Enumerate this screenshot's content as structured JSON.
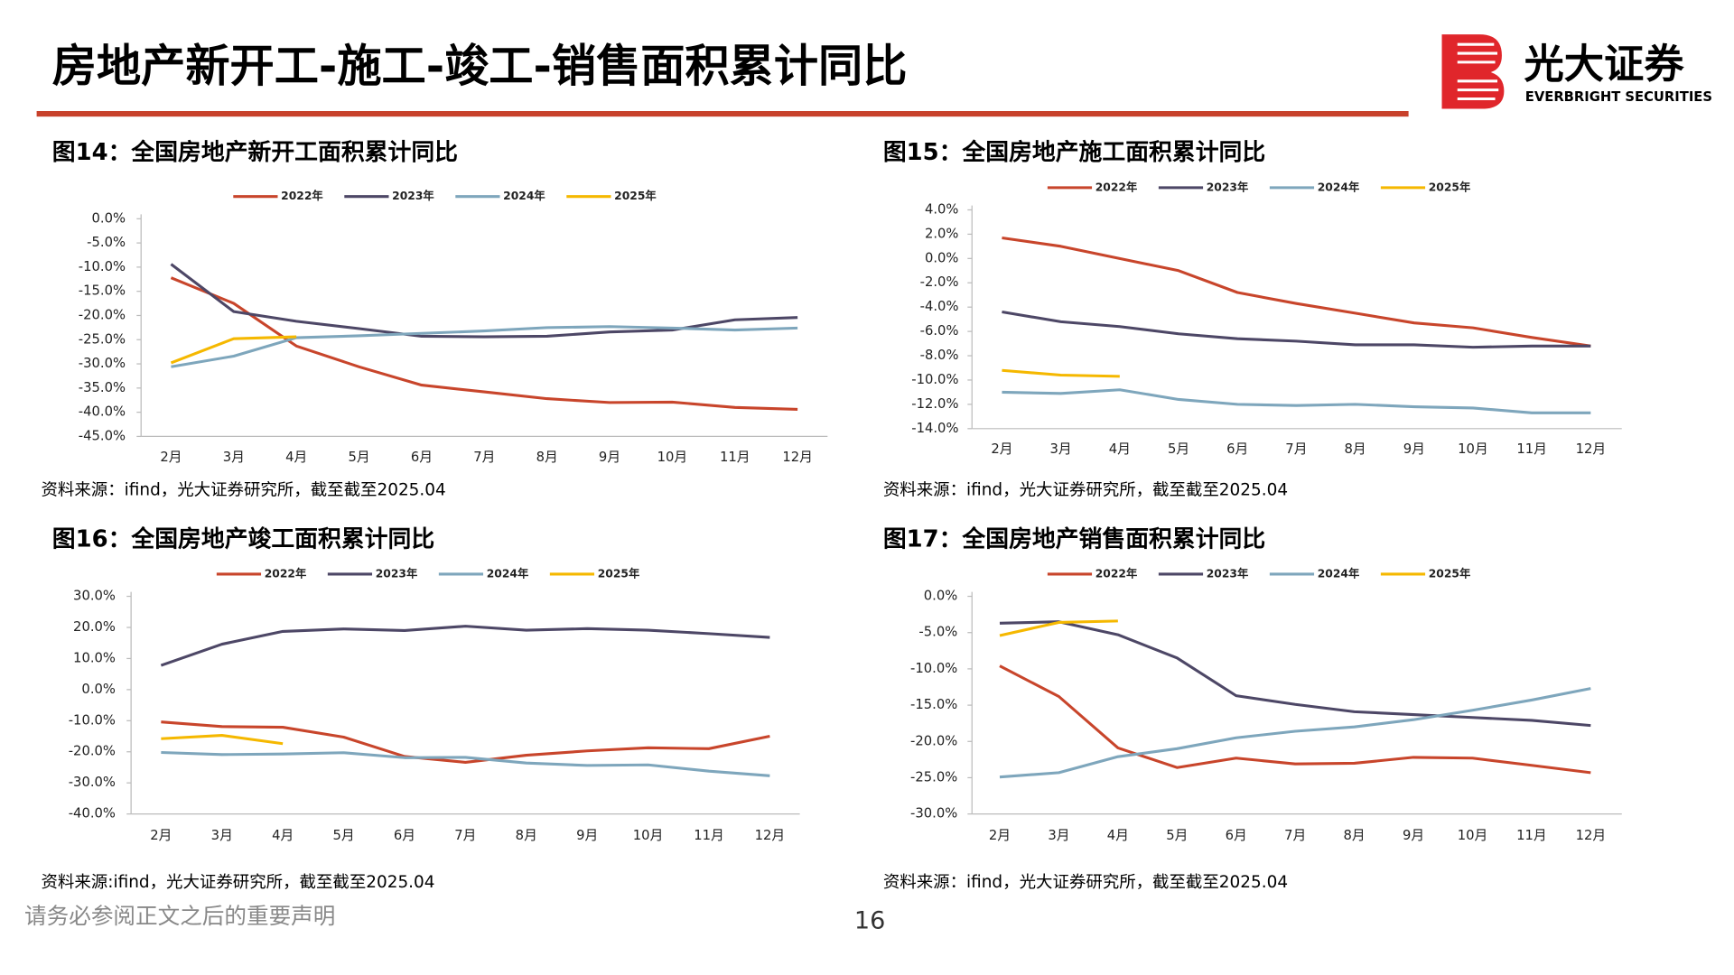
{
  "header": {
    "title": "房地产新开工-施工-竣工-销售面积累计同比",
    "logo_cn": "光大证券",
    "logo_en": "EVERBRIGHT SECURITIES"
  },
  "chart_data": [
    {
      "type": "line",
      "title": "图14：全国房地产新开工面积累计同比",
      "source": "资料来源：ifind，光大证券研究所，截至截至2025.04",
      "categories": [
        "2月",
        "3月",
        "4月",
        "5月",
        "6月",
        "7月",
        "8月",
        "9月",
        "10月",
        "11月",
        "12月"
      ],
      "series": [
        {
          "name": "2022年",
          "color": "#c8452b",
          "values": [
            -12.2,
            -17.5,
            -26.3,
            -30.6,
            -34.4,
            -35.8,
            -37.2,
            -38.0,
            -37.9,
            -39.0,
            -39.4
          ]
        },
        {
          "name": "2023年",
          "color": "#4d4766",
          "values": [
            -9.4,
            -19.2,
            -21.2,
            -22.7,
            -24.3,
            -24.4,
            -24.3,
            -23.4,
            -23.0,
            -20.9,
            -20.4
          ]
        },
        {
          "name": "2024年",
          "color": "#7ea6bc",
          "values": [
            -30.6,
            -28.4,
            -24.6,
            -24.2,
            -23.7,
            -23.2,
            -22.5,
            -22.3,
            -22.6,
            -23.0,
            -22.6
          ]
        },
        {
          "name": "2025年",
          "color": "#f5b800",
          "values": [
            -29.8,
            -24.8,
            -24.4,
            null,
            null,
            null,
            null,
            null,
            null,
            null,
            null
          ]
        }
      ],
      "ylim": [
        -45,
        0
      ],
      "yticks": [
        {
          "value": 0,
          "label": "0.0%"
        },
        {
          "value": -5,
          "label": "-5.0%"
        },
        {
          "value": -10,
          "label": "-10.0%"
        },
        {
          "value": -15,
          "label": "-15.0%"
        },
        {
          "value": -20,
          "label": "-20.0%"
        },
        {
          "value": -25,
          "label": "-25.0%"
        },
        {
          "value": -30,
          "label": "-30.0%"
        },
        {
          "value": -35,
          "label": "-35.0%"
        },
        {
          "value": -40,
          "label": "-40.0%"
        },
        {
          "value": -45,
          "label": "-45.0%"
        }
      ]
    },
    {
      "type": "line",
      "title": "图15：全国房地产施工面积累计同比",
      "source": "资料来源：ifind，光大证券研究所，截至截至2025.04",
      "categories": [
        "2月",
        "3月",
        "4月",
        "5月",
        "6月",
        "7月",
        "8月",
        "9月",
        "10月",
        "11月",
        "12月"
      ],
      "series": [
        {
          "name": "2022年",
          "color": "#c8452b",
          "values": [
            1.7,
            1.0,
            0.0,
            -1.0,
            -2.8,
            -3.7,
            -4.5,
            -5.3,
            -5.7,
            -6.5,
            -7.2
          ]
        },
        {
          "name": "2023年",
          "color": "#4d4766",
          "values": [
            -4.4,
            -5.2,
            -5.6,
            -6.2,
            -6.6,
            -6.8,
            -7.1,
            -7.1,
            -7.3,
            -7.2,
            -7.2
          ]
        },
        {
          "name": "2024年",
          "color": "#7ea6bc",
          "values": [
            -11.0,
            -11.1,
            -10.8,
            -11.6,
            -12.0,
            -12.1,
            -12.0,
            -12.2,
            -12.3,
            -12.7,
            -12.7
          ]
        },
        {
          "name": "2025年",
          "color": "#f5b800",
          "values": [
            -9.2,
            -9.6,
            -9.7,
            null,
            null,
            null,
            null,
            null,
            null,
            null,
            null
          ]
        }
      ],
      "ylim": [
        -14,
        4
      ],
      "yticks": [
        {
          "value": 4,
          "label": "4.0%"
        },
        {
          "value": 2,
          "label": "2.0%"
        },
        {
          "value": 0,
          "label": "0.0%"
        },
        {
          "value": -2,
          "label": "-2.0%"
        },
        {
          "value": -4,
          "label": "-4.0%"
        },
        {
          "value": -6,
          "label": "-6.0%"
        },
        {
          "value": -8,
          "label": "-8.0%"
        },
        {
          "value": -10,
          "label": "-10.0%"
        },
        {
          "value": -12,
          "label": "-12.0%"
        },
        {
          "value": -14,
          "label": "-14.0%"
        }
      ]
    },
    {
      "type": "line",
      "title": "图16：全国房地产竣工面积累计同比",
      "source": "资料来源:ifind，光大证券研究所，截至截至2025.04",
      "categories": [
        "2月",
        "3月",
        "4月",
        "5月",
        "6月",
        "7月",
        "8月",
        "9月",
        "10月",
        "11月",
        "12月"
      ],
      "series": [
        {
          "name": "2022年",
          "color": "#c8452b",
          "values": [
            -10.4,
            -11.9,
            -12.1,
            -15.3,
            -21.5,
            -23.4,
            -21.1,
            -19.7,
            -18.7,
            -19.0,
            -15.0
          ]
        },
        {
          "name": "2023年",
          "color": "#4d4766",
          "values": [
            7.8,
            14.6,
            18.7,
            19.5,
            19.0,
            20.4,
            19.1,
            19.6,
            19.1,
            18.0,
            16.8
          ]
        },
        {
          "name": "2024年",
          "color": "#7ea6bc",
          "values": [
            -20.2,
            -20.9,
            -20.7,
            -20.3,
            -21.9,
            -21.8,
            -23.6,
            -24.4,
            -24.2,
            -26.2,
            -27.7
          ]
        },
        {
          "name": "2025年",
          "color": "#f5b800",
          "values": [
            -15.8,
            -14.7,
            -17.4,
            null,
            null,
            null,
            null,
            null,
            null,
            null,
            null
          ]
        }
      ],
      "ylim": [
        -40,
        30
      ],
      "yticks": [
        {
          "value": 30,
          "label": "30.0%"
        },
        {
          "value": 20,
          "label": "20.0%"
        },
        {
          "value": 10,
          "label": "10.0%"
        },
        {
          "value": 0,
          "label": "0.0%"
        },
        {
          "value": -10,
          "label": "-10.0%"
        },
        {
          "value": -20,
          "label": "-20.0%"
        },
        {
          "value": -30,
          "label": "-30.0%"
        },
        {
          "value": -40,
          "label": "-40.0%"
        }
      ]
    },
    {
      "type": "line",
      "title": "图17：全国房地产销售面积累计同比",
      "source": "资料来源：ifind，光大证券研究所，截至截至2025.04",
      "categories": [
        "2月",
        "3月",
        "4月",
        "5月",
        "6月",
        "7月",
        "8月",
        "9月",
        "10月",
        "11月",
        "12月"
      ],
      "series": [
        {
          "name": "2022年",
          "color": "#c8452b",
          "values": [
            -9.6,
            -13.8,
            -20.9,
            -23.6,
            -22.3,
            -23.1,
            -23.0,
            -22.2,
            -22.3,
            -23.3,
            -24.3
          ]
        },
        {
          "name": "2023年",
          "color": "#4d4766",
          "values": [
            -3.7,
            -3.5,
            -5.3,
            -8.5,
            -13.7,
            -14.9,
            -15.9,
            -16.3,
            -16.7,
            -17.1,
            -17.8
          ]
        },
        {
          "name": "2024年",
          "color": "#7ea6bc",
          "values": [
            -24.9,
            -24.3,
            -22.1,
            -21.0,
            -19.5,
            -18.6,
            -18.0,
            -17.0,
            -15.7,
            -14.3,
            -12.7
          ]
        },
        {
          "name": "2025年",
          "color": "#f5b800",
          "values": [
            -5.4,
            -3.6,
            -3.4,
            null,
            null,
            null,
            null,
            null,
            null,
            null,
            null
          ]
        }
      ],
      "ylim": [
        -30,
        0
      ],
      "yticks": [
        {
          "value": 0,
          "label": "0.0%"
        },
        {
          "value": -5,
          "label": "-5.0%"
        },
        {
          "value": -10,
          "label": "-10.0%"
        },
        {
          "value": -15,
          "label": "-15.0%"
        },
        {
          "value": -20,
          "label": "-20.0%"
        },
        {
          "value": -25,
          "label": "-25.0%"
        },
        {
          "value": -30,
          "label": "-30.0%"
        }
      ]
    }
  ],
  "footer": {
    "disclaimer": "请务必参阅正文之后的重要声明",
    "page": "16"
  }
}
